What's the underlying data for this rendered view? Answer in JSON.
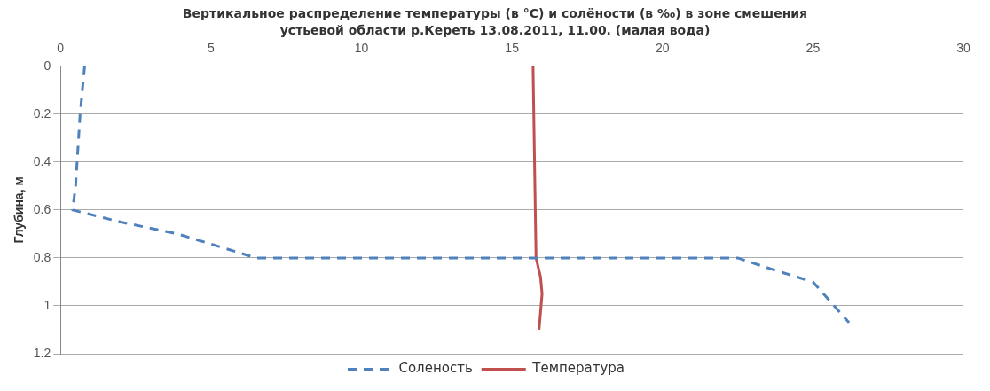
{
  "chart_data": {
    "type": "line",
    "title": "Вертикальное распределение температуры (в °C) и солёности (в ‰) в зоне смешения устьевой области р.Кереть 13.08.2011, 11.00. (малая вода)",
    "ylabel": "Глубина, м",
    "xlim": [
      0,
      30
    ],
    "xticks": [
      0,
      5,
      10,
      15,
      20,
      25,
      30
    ],
    "ylim": [
      1.2,
      0
    ],
    "yticks": [
      0,
      0.2,
      0.4,
      0.6,
      0.8,
      1,
      1.2
    ],
    "grid": "y",
    "legend": "bottom",
    "marker": "none",
    "series": [
      {
        "name": "Соленость",
        "color": "#4f81bd",
        "line_style": "dashed",
        "x": [
          0.8,
          0.65,
          0.5,
          0.4,
          2.0,
          3.9,
          6.5,
          22.5,
          23.7,
          25.0,
          26.2
        ],
        "values": [
          0,
          0.2,
          0.5,
          0.6,
          0.65,
          0.7,
          0.8,
          0.8,
          0.85,
          0.9,
          1.07
        ]
      },
      {
        "name": "Температура",
        "color": "#c0504d",
        "line_style": "solid",
        "x": [
          15.7,
          15.75,
          15.8,
          15.95,
          16.0,
          15.9
        ],
        "values": [
          0,
          0.4,
          0.8,
          0.88,
          0.95,
          1.1
        ]
      }
    ]
  }
}
